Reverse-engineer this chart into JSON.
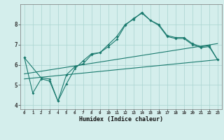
{
  "xlabel": "Humidex (Indice chaleur)",
  "background_color": "#d4eeec",
  "grid_color": "#aad4d0",
  "line_color": "#1a7a6e",
  "xlim": [
    -0.5,
    23.5
  ],
  "ylim": [
    3.8,
    9.0
  ],
  "xticks": [
    0,
    1,
    2,
    3,
    4,
    5,
    6,
    7,
    8,
    9,
    10,
    11,
    12,
    13,
    14,
    15,
    16,
    17,
    18,
    19,
    20,
    21,
    22,
    23
  ],
  "yticks": [
    4,
    5,
    6,
    7,
    8
  ],
  "line1_x": [
    0,
    1,
    2,
    3,
    4,
    5,
    6,
    7,
    8,
    9,
    10,
    11,
    12,
    13,
    14,
    15,
    16,
    17,
    18,
    19,
    20,
    21,
    22,
    23
  ],
  "line1_y": [
    6.35,
    4.6,
    5.3,
    5.2,
    4.2,
    5.05,
    5.8,
    6.2,
    6.55,
    6.6,
    7.0,
    7.4,
    8.0,
    8.25,
    8.6,
    8.2,
    8.0,
    7.45,
    7.35,
    7.35,
    7.05,
    6.9,
    6.95,
    6.25
  ],
  "line2_x": [
    0,
    2,
    3,
    4,
    5,
    6,
    7,
    8,
    9,
    10,
    11,
    12,
    13,
    14,
    15,
    16,
    17,
    18,
    19,
    20,
    21,
    22,
    23
  ],
  "line2_y": [
    6.35,
    5.35,
    5.3,
    4.2,
    5.5,
    5.9,
    6.05,
    6.5,
    6.6,
    6.9,
    7.25,
    7.95,
    8.3,
    8.55,
    8.2,
    7.95,
    7.4,
    7.3,
    7.3,
    7.0,
    6.85,
    6.9,
    6.25
  ],
  "line3_x": [
    0,
    23
  ],
  "line3_y": [
    5.3,
    6.25
  ],
  "line4_x": [
    0,
    23
  ],
  "line4_y": [
    5.55,
    7.05
  ]
}
